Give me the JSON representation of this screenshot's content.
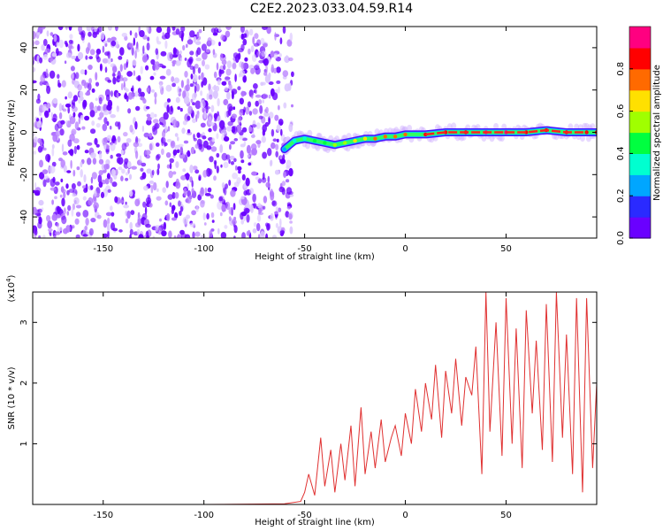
{
  "title": "C2E2.2023.033.04.59.R14",
  "colors": {
    "snr_line": "#e03030",
    "axis": "#000000",
    "colormap": [
      "#6a00ff",
      "#2a2aff",
      "#00a6ff",
      "#00ffd0",
      "#00ff40",
      "#a0ff00",
      "#ffe000",
      "#ff6a00",
      "#ff0000",
      "#ff0080"
    ]
  },
  "chart_data": [
    {
      "type": "heatmap",
      "xlabel": "Height of straight line (km)",
      "ylabel": "Frequency (Hz)",
      "xlim": [
        -185,
        95
      ],
      "ylim": [
        -50,
        50
      ],
      "x_ticks": [
        -150,
        -100,
        -50,
        0,
        50
      ],
      "y_ticks": [
        -40,
        -20,
        0,
        20,
        40
      ],
      "colorbar": {
        "label": "Normalized spectral amplitude",
        "range": [
          0,
          1
        ],
        "ticks": [
          0.0,
          0.2,
          0.4,
          0.6,
          0.8
        ]
      },
      "noise_region_x": [
        -185,
        -60
      ],
      "signal_track": {
        "x": [
          -60,
          -55,
          -50,
          -45,
          -40,
          -35,
          -30,
          -25,
          -20,
          -15,
          -10,
          -5,
          0,
          10,
          20,
          30,
          40,
          50,
          60,
          70,
          80,
          90,
          95
        ],
        "y": [
          -8,
          -4,
          -3,
          -4,
          -5,
          -6,
          -5,
          -4,
          -3,
          -3,
          -2,
          -2,
          -1,
          -1,
          0,
          0,
          0,
          0,
          0,
          1,
          0,
          0,
          0
        ],
        "amplitude": [
          0.25,
          0.3,
          0.35,
          0.4,
          0.45,
          0.5,
          0.55,
          0.6,
          0.65,
          0.7,
          0.72,
          0.75,
          0.78,
          0.82,
          0.86,
          0.88,
          0.9,
          0.9,
          0.88,
          0.85,
          0.85,
          0.82,
          0.8
        ]
      }
    },
    {
      "type": "line",
      "xlabel": "Height of straight line (km)",
      "ylabel": "SNR (10 * v/v)",
      "y_multiplier": "(x10",
      "y_multiplier_exp": "4",
      "y_multiplier_close": ")",
      "xlim": [
        -185,
        95
      ],
      "ylim": [
        0,
        3.5
      ],
      "x_ticks": [
        -150,
        -100,
        -50,
        0,
        50
      ],
      "y_ticks": [
        1,
        2,
        3
      ],
      "series": [
        {
          "x": [
            -185,
            -150,
            -100,
            -60,
            -52,
            -50,
            -48,
            -45,
            -42,
            -40,
            -37,
            -35,
            -32,
            -30,
            -27,
            -25,
            -22,
            -20,
            -17,
            -15,
            -12,
            -10,
            -7,
            -5,
            -2,
            0,
            3,
            5,
            8,
            10,
            13,
            15,
            18,
            20,
            23,
            25,
            28,
            30,
            33,
            35,
            38,
            40,
            42,
            45,
            48,
            50,
            53,
            55,
            58,
            60,
            63,
            65,
            68,
            70,
            73,
            75,
            78,
            80,
            83,
            85,
            88,
            90,
            93,
            95
          ],
          "y": [
            0.0,
            0.0,
            0.0,
            0.01,
            0.05,
            0.2,
            0.5,
            0.15,
            1.1,
            0.3,
            0.9,
            0.2,
            1.0,
            0.4,
            1.3,
            0.3,
            1.6,
            0.5,
            1.2,
            0.6,
            1.4,
            0.7,
            1.1,
            1.3,
            0.8,
            1.5,
            1.0,
            1.9,
            1.2,
            2.0,
            1.4,
            2.3,
            1.1,
            2.2,
            1.5,
            2.4,
            1.3,
            2.1,
            1.8,
            2.6,
            0.5,
            3.5,
            1.2,
            3.0,
            0.8,
            3.4,
            1.0,
            2.9,
            0.6,
            3.2,
            1.5,
            2.7,
            0.9,
            3.3,
            0.7,
            3.5,
            1.1,
            2.8,
            0.5,
            3.4,
            0.2,
            3.4,
            0.6,
            2.0
          ]
        }
      ]
    }
  ]
}
